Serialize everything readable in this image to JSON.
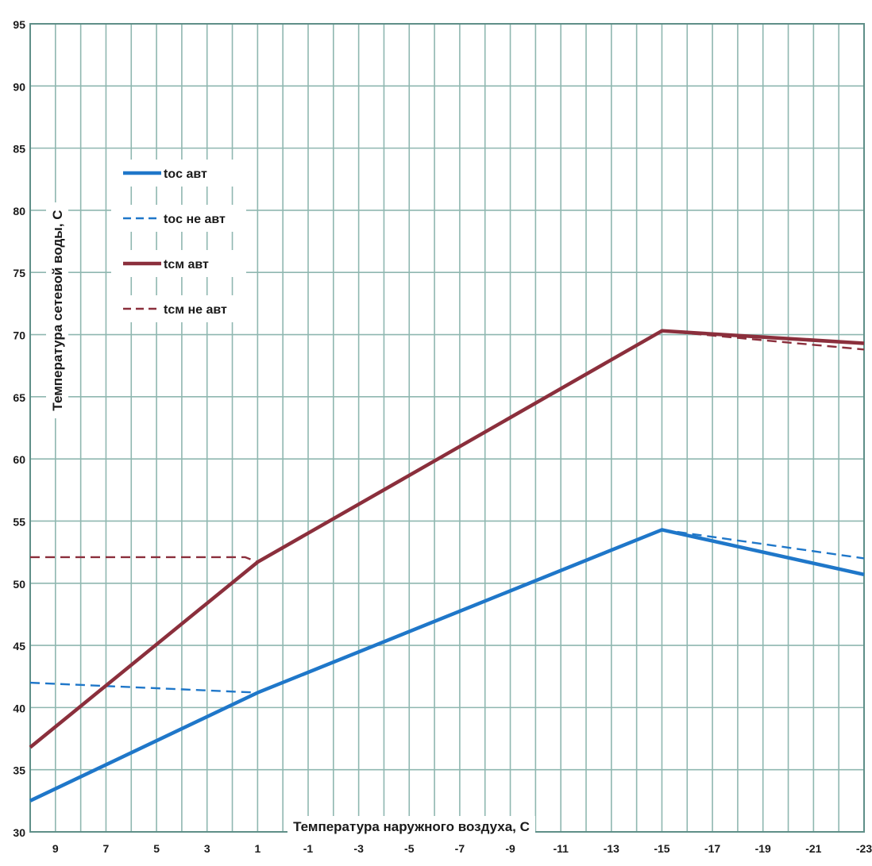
{
  "chart_data": {
    "type": "line",
    "title": "",
    "xlabel": "Температура наружного воздуха, С",
    "ylabel": "Температура сетевой воды, С",
    "x_ticks": [
      9,
      7,
      5,
      3,
      1,
      -1,
      -3,
      -5,
      -7,
      -9,
      -11,
      -13,
      -15,
      -17,
      -19,
      -21,
      -23
    ],
    "x_tick_labels": [
      "9",
      "7",
      "5",
      "3",
      "1",
      "-1",
      "-3",
      "-5",
      "-7",
      "-9",
      "-11",
      "-13",
      "-15",
      "-17",
      "-19",
      "-21",
      "-23"
    ],
    "xlim": [
      10,
      -23
    ],
    "x_reversed": true,
    "ylim": [
      30,
      95
    ],
    "y_ticks": [
      30,
      35,
      40,
      45,
      50,
      55,
      60,
      65,
      70,
      75,
      80,
      85,
      90,
      95
    ],
    "y_tick_labels": [
      "30",
      "35",
      "40",
      "45",
      "50",
      "55",
      "60",
      "65",
      "70",
      "75",
      "80",
      "85",
      "90",
      "95"
    ],
    "grid": true,
    "legend_position": "top-left",
    "series": [
      {
        "name": "toc авт",
        "color": "#1f77c9",
        "style": "solid",
        "x": [
          10,
          1,
          -15,
          -23
        ],
        "y": [
          32.5,
          41.2,
          54.3,
          50.7
        ]
      },
      {
        "name": "toc не авт",
        "color": "#1f77c9",
        "style": "dashed",
        "x": [
          10,
          1,
          -15,
          -23
        ],
        "y": [
          42.0,
          41.2,
          54.3,
          52.0
        ]
      },
      {
        "name": "tcм авт",
        "color": "#8b2f3c",
        "style": "solid",
        "x": [
          10,
          1,
          -15,
          -23
        ],
        "y": [
          36.8,
          51.7,
          70.3,
          69.3
        ]
      },
      {
        "name": "tcм не авт",
        "color": "#8b2f3c",
        "style": "dashed",
        "x": [
          10,
          1.5,
          1,
          -15,
          -23
        ],
        "y": [
          52.1,
          52.1,
          51.7,
          70.3,
          68.8
        ]
      }
    ]
  }
}
